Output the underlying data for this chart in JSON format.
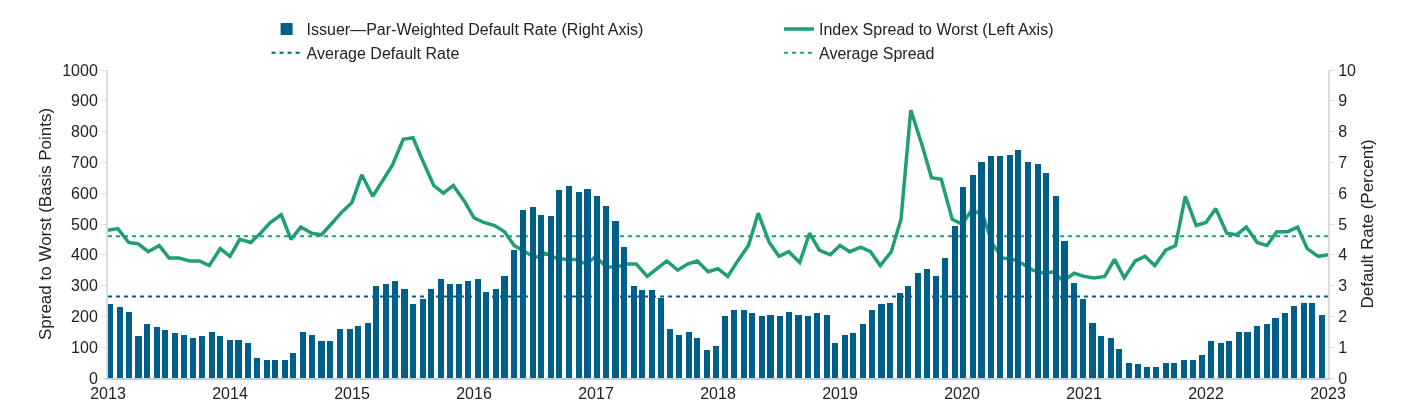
{
  "chart_data": {
    "type": "bar",
    "ylabel": "Spread to Worst (Basis Points)",
    "y2label": "Default Rate (Percent)",
    "xlim": [
      2013,
      2023
    ],
    "xticks": [
      2013,
      2014,
      2015,
      2016,
      2017,
      2018,
      2019,
      2020,
      2021,
      2022,
      2023
    ],
    "ylim": [
      0,
      1000
    ],
    "yticks": [
      0,
      100,
      200,
      300,
      400,
      500,
      600,
      700,
      800,
      900,
      1000
    ],
    "y2lim": [
      0,
      10
    ],
    "y2ticks": [
      0,
      1,
      2,
      3,
      4,
      5,
      6,
      7,
      8,
      9,
      10
    ],
    "legend": "top",
    "grid": false,
    "series": [
      {
        "axis": "y2",
        "name": "Issuer—Par-Weighted Default Rate (Right Axis)",
        "color": "#005f8a",
        "x": [
          2013.02,
          2013.1,
          2013.17,
          2013.25,
          2013.32,
          2013.4,
          2013.47,
          2013.55,
          2013.62,
          2013.7,
          2013.77,
          2013.85,
          2013.92,
          2014.0,
          2014.07,
          2014.15,
          2014.22,
          2014.3,
          2014.37,
          2014.45,
          2014.52,
          2014.6,
          2014.67,
          2014.75,
          2014.82,
          2014.9,
          2014.98,
          2015.05,
          2015.13,
          2015.2,
          2015.28,
          2015.35,
          2015.43,
          2015.5,
          2015.58,
          2015.65,
          2015.73,
          2015.8,
          2015.88,
          2015.95,
          2016.03,
          2016.1,
          2016.18,
          2016.25,
          2016.33,
          2016.4,
          2016.48,
          2016.55,
          2016.63,
          2016.7,
          2016.78,
          2016.86,
          2016.93,
          2017.01,
          2017.08,
          2017.16,
          2017.23,
          2017.31,
          2017.38,
          2017.46,
          2017.53,
          2017.61,
          2017.68,
          2017.76,
          2017.83,
          2017.91,
          2017.98,
          2018.06,
          2018.13,
          2018.21,
          2018.28,
          2018.36,
          2018.43,
          2018.51,
          2018.58,
          2018.66,
          2018.74,
          2018.81,
          2018.89,
          2018.96,
          2019.04,
          2019.11,
          2019.19,
          2019.26,
          2019.34,
          2019.41,
          2019.49,
          2019.56,
          2019.64,
          2019.71,
          2019.79,
          2019.86,
          2019.94,
          2020.01,
          2020.09,
          2020.16,
          2020.24,
          2020.31,
          2020.39,
          2020.46,
          2020.54,
          2020.62,
          2020.69,
          2020.77,
          2020.84,
          2020.92,
          2020.99,
          2021.07,
          2021.14,
          2021.22,
          2021.29,
          2021.37,
          2021.44,
          2021.52,
          2021.59,
          2021.67,
          2021.74,
          2021.82,
          2021.89,
          2021.97,
          2022.04,
          2022.12,
          2022.19,
          2022.27,
          2022.34,
          2022.42,
          2022.5,
          2022.57,
          2022.65,
          2022.72,
          2022.8,
          2022.87,
          2022.95
        ],
        "values": [
          2.4,
          2.3,
          2.15,
          1.35,
          1.75,
          1.65,
          1.55,
          1.45,
          1.4,
          1.3,
          1.35,
          1.5,
          1.35,
          1.25,
          1.25,
          1.15,
          0.65,
          0.6,
          0.6,
          0.6,
          0.8,
          1.5,
          1.4,
          1.2,
          1.2,
          1.6,
          1.6,
          1.7,
          1.8,
          3.0,
          3.05,
          3.15,
          2.9,
          2.4,
          2.55,
          2.9,
          3.2,
          3.05,
          3.05,
          3.15,
          3.2,
          2.8,
          2.9,
          3.3,
          4.15,
          5.45,
          5.55,
          5.3,
          5.25,
          6.1,
          6.25,
          6.05,
          6.15,
          5.9,
          5.6,
          5.1,
          4.25,
          3.0,
          2.85,
          2.85,
          2.6,
          1.6,
          1.4,
          1.5,
          1.3,
          0.9,
          1.05,
          2.0,
          2.2,
          2.2,
          2.1,
          2.0,
          2.05,
          2.0,
          2.15,
          2.05,
          2.0,
          2.1,
          2.05,
          1.15,
          1.4,
          1.45,
          1.75,
          2.2,
          2.4,
          2.45,
          2.75,
          3.0,
          3.4,
          3.55,
          3.3,
          3.9,
          4.95,
          6.2,
          6.6,
          7.0,
          7.2,
          7.2,
          7.25,
          7.4,
          7.0,
          6.95,
          6.65,
          5.9,
          4.45,
          3.1,
          2.55,
          1.8,
          1.35,
          1.3,
          0.95,
          0.5,
          0.45,
          0.35,
          0.35,
          0.5,
          0.5,
          0.6,
          0.6,
          0.75,
          1.2,
          1.15,
          1.2,
          1.5,
          1.5,
          1.7,
          1.75,
          1.95,
          2.1,
          2.35,
          2.45,
          2.45,
          2.05
        ]
      },
      {
        "type": "line",
        "name": "Index Spread to Worst (Left Axis)",
        "color": "#1f9e78",
        "x": [
          2013.0,
          2013.08,
          2013.17,
          2013.25,
          2013.33,
          2013.42,
          2013.5,
          2013.58,
          2013.67,
          2013.75,
          2013.83,
          2013.92,
          2014.0,
          2014.08,
          2014.17,
          2014.25,
          2014.33,
          2014.42,
          2014.5,
          2014.58,
          2014.67,
          2014.75,
          2014.83,
          2014.92,
          2015.0,
          2015.08,
          2015.17,
          2015.25,
          2015.33,
          2015.42,
          2015.5,
          2015.58,
          2015.67,
          2015.75,
          2015.83,
          2015.92,
          2016.0,
          2016.08,
          2016.17,
          2016.25,
          2016.33,
          2016.42,
          2016.5,
          2016.58,
          2016.67,
          2016.75,
          2016.83,
          2016.92,
          2017.0,
          2017.08,
          2017.17,
          2017.25,
          2017.33,
          2017.42,
          2017.5,
          2017.58,
          2017.67,
          2017.75,
          2017.83,
          2017.92,
          2018.0,
          2018.08,
          2018.17,
          2018.25,
          2018.33,
          2018.42,
          2018.5,
          2018.58,
          2018.67,
          2018.75,
          2018.83,
          2018.92,
          2019.0,
          2019.08,
          2019.17,
          2019.25,
          2019.33,
          2019.42,
          2019.5,
          2019.58,
          2019.67,
          2019.75,
          2019.83,
          2019.92,
          2020.0,
          2020.08,
          2020.17,
          2020.25,
          2020.33,
          2020.42,
          2020.5,
          2020.58,
          2020.67,
          2020.75,
          2020.83,
          2020.92,
          2021.0,
          2021.08,
          2021.17,
          2021.25,
          2021.33,
          2021.42,
          2021.5,
          2021.58,
          2021.67,
          2021.75,
          2021.83,
          2021.92,
          2022.0,
          2022.08,
          2022.17,
          2022.25,
          2022.33,
          2022.42,
          2022.5,
          2022.58,
          2022.67,
          2022.75,
          2022.83,
          2022.92,
          2023.0
        ],
        "values": [
          480,
          485,
          440,
          435,
          410,
          430,
          390,
          390,
          380,
          380,
          365,
          420,
          395,
          450,
          440,
          470,
          505,
          530,
          450,
          490,
          470,
          465,
          500,
          540,
          570,
          660,
          590,
          640,
          690,
          775,
          780,
          705,
          625,
          600,
          625,
          575,
          520,
          505,
          495,
          475,
          430,
          410,
          390,
          405,
          390,
          385,
          385,
          370,
          395,
          360,
          360,
          370,
          370,
          330,
          355,
          380,
          350,
          370,
          380,
          345,
          355,
          330,
          385,
          430,
          535,
          440,
          395,
          410,
          375,
          470,
          415,
          400,
          430,
          410,
          425,
          410,
          365,
          410,
          515,
          870,
          760,
          650,
          645,
          515,
          500,
          545,
          530,
          435,
          390,
          385,
          370,
          350,
          340,
          345,
          315,
          340,
          330,
          325,
          330,
          385,
          325,
          380,
          395,
          365,
          415,
          430,
          590,
          495,
          505,
          550,
          470,
          465,
          490,
          440,
          430,
          475,
          475,
          490,
          420,
          395,
          400
        ]
      }
    ],
    "ref_lines": [
      {
        "axis": "y2",
        "value": 2.65,
        "label": "Average Default Rate",
        "color": "#005f8a",
        "line_style": "dashed"
      },
      {
        "axis": "y",
        "value": 460,
        "label": "Average Spread",
        "color": "#1f9e78",
        "line_style": "dashed"
      }
    ]
  }
}
